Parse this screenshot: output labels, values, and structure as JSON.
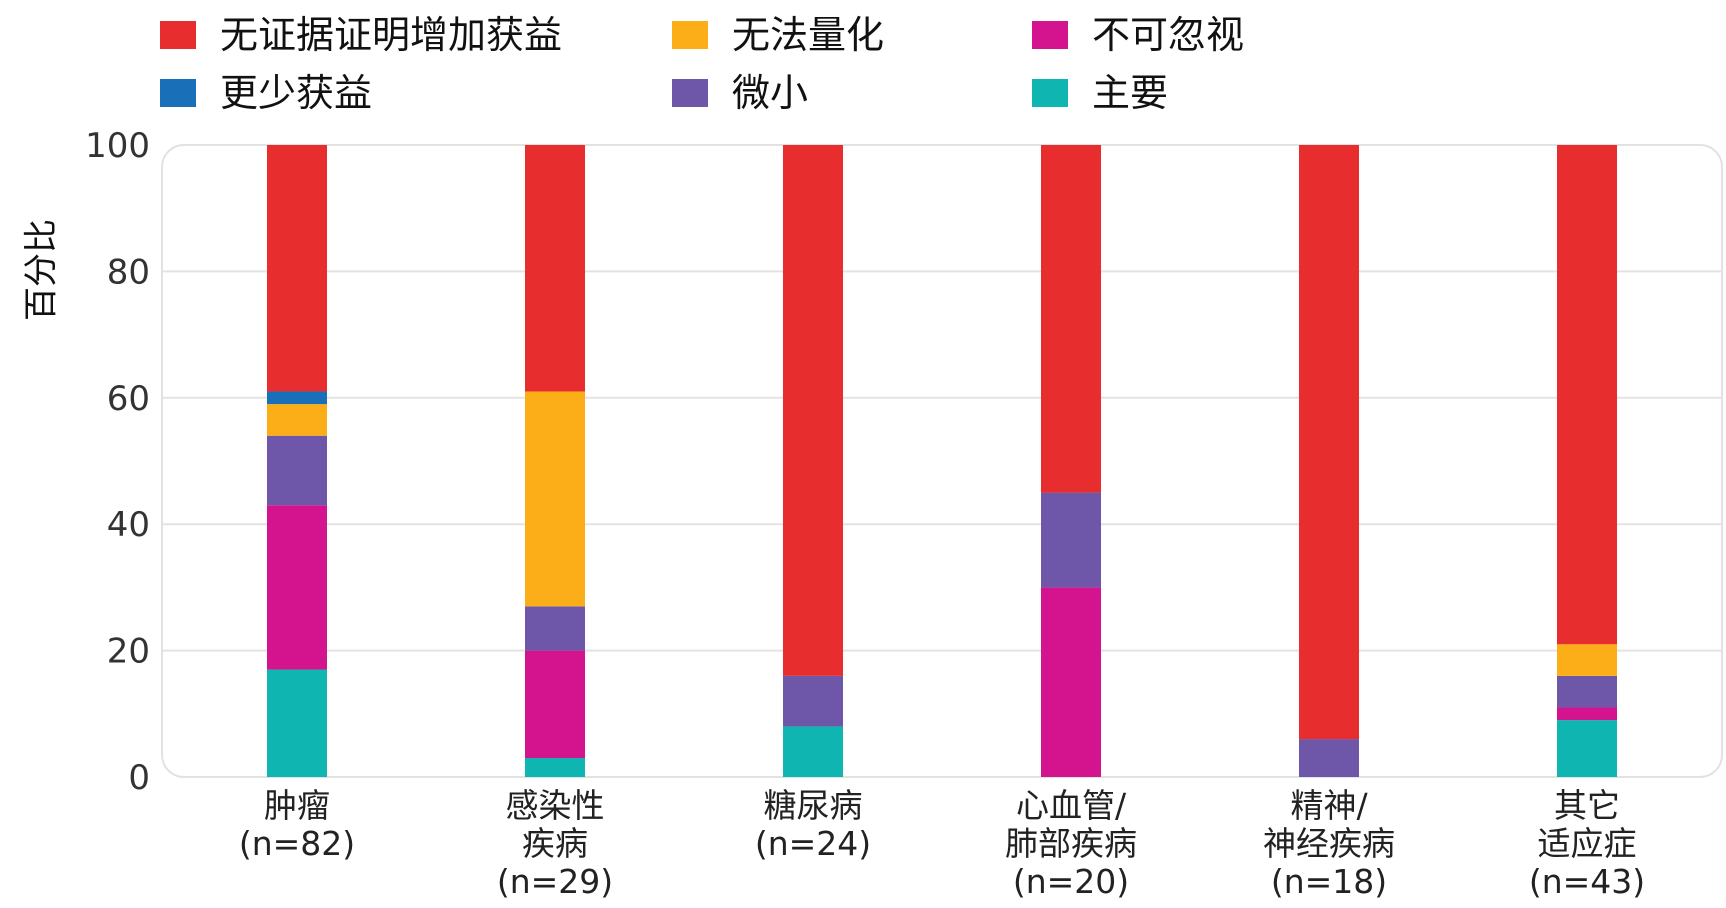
{
  "chart_data": {
    "type": "bar",
    "stacked": true,
    "title": "",
    "xlabel": "",
    "ylabel": "百分比",
    "ylim": [
      0,
      100
    ],
    "yticks": [
      "0",
      "20",
      "40",
      "60",
      "80",
      "100"
    ],
    "grid": true,
    "legend_position": "top",
    "categories": [
      "肿瘤\n(n=82)",
      "感染性\n疾病\n(n=29)",
      "糖尿病\n(n=24)",
      "心血管/\n肺部疾病\n(n=20)",
      "精神/\n神经疾病\n(n=18)",
      "其它\n适应症\n(n=43)"
    ],
    "series": [
      {
        "name": "主要",
        "color": "#0eb5b1",
        "values": [
          17,
          3,
          8,
          0,
          0,
          9
        ]
      },
      {
        "name": "不可忽视",
        "color": "#d4148e",
        "values": [
          26,
          17,
          0,
          30,
          0,
          2
        ]
      },
      {
        "name": "微小",
        "color": "#6e57a8",
        "values": [
          11,
          7,
          8,
          15,
          6,
          5
        ]
      },
      {
        "name": "无法量化",
        "color": "#fbae18",
        "values": [
          5,
          34,
          0,
          0,
          0,
          5
        ]
      },
      {
        "name": "更少获益",
        "color": "#1a70b8",
        "values": [
          2,
          0,
          0,
          0,
          0,
          0
        ]
      },
      {
        "name": "无证据证明增加获益",
        "color": "#e82d2f",
        "values": [
          39,
          39,
          84,
          55,
          94,
          79
        ]
      }
    ],
    "legend_order": [
      "无证据证明增加获益",
      "无法量化",
      "不可忽视",
      "更少获益",
      "微小",
      "主要"
    ]
  }
}
